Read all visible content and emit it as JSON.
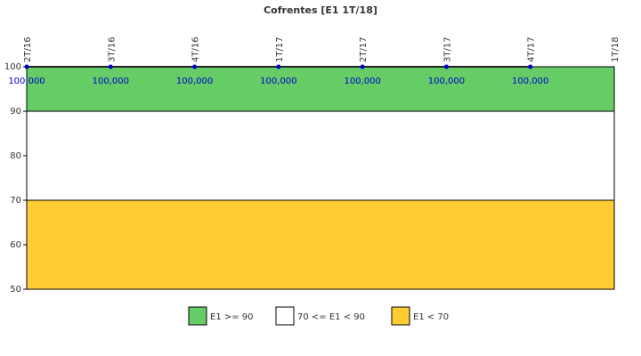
{
  "chart_data": {
    "type": "line",
    "title": "Cofrentes [E1 1T/18]",
    "categories": [
      "2T/16",
      "3T/16",
      "4T/16",
      "1T/17",
      "2T/17",
      "3T/17",
      "4T/17",
      "1T/18"
    ],
    "series": [
      {
        "name": "E1",
        "color": "#0000cc",
        "values": [
          100,
          100,
          100,
          100,
          100,
          100,
          100,
          null
        ],
        "value_labels": [
          "100,000",
          "100,000",
          "100,000",
          "100,000",
          "100,000",
          "100,000",
          "100,000",
          null
        ]
      }
    ],
    "bands": [
      {
        "name": "E1 >= 90",
        "color": "#66cc66",
        "from": 90,
        "to": 100
      },
      {
        "name": "70 <= E1 < 90",
        "color": "#ffffff",
        "from": 70,
        "to": 90
      },
      {
        "name": "E1 < 70",
        "color": "#ffcc33",
        "from": 50,
        "to": 70
      }
    ],
    "ylim": [
      50,
      100
    ],
    "yticks": [
      50,
      60,
      70,
      80,
      90,
      100
    ]
  }
}
